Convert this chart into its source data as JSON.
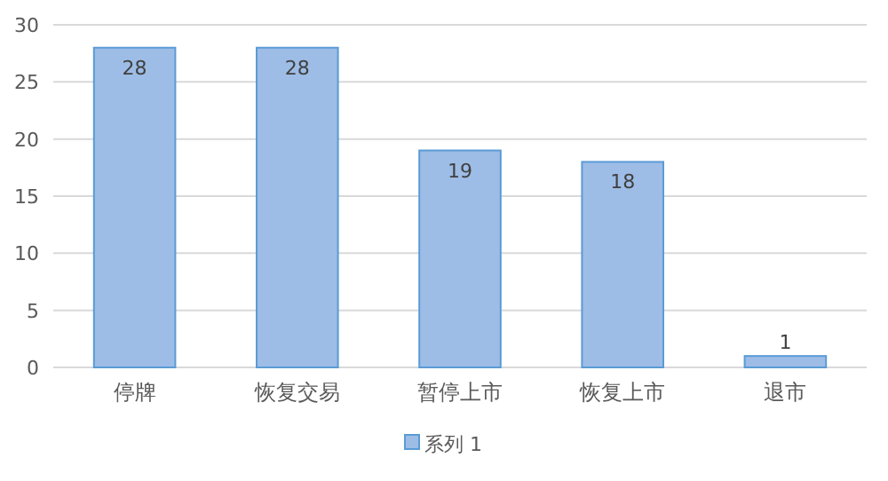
{
  "chart_data": {
    "type": "bar",
    "categories": [
      "停牌",
      "恢复交易",
      "暂停上市",
      "恢复上市",
      "退市"
    ],
    "series": [
      {
        "name": "系列 1",
        "color": "#9dbde6",
        "values": [
          28,
          28,
          19,
          18,
          1
        ]
      }
    ],
    "ylim": [
      0,
      30
    ],
    "yticks": [
      0,
      5,
      10,
      15,
      20,
      25,
      30
    ],
    "grid": "y",
    "legend": "bottom",
    "data_labels": true
  }
}
